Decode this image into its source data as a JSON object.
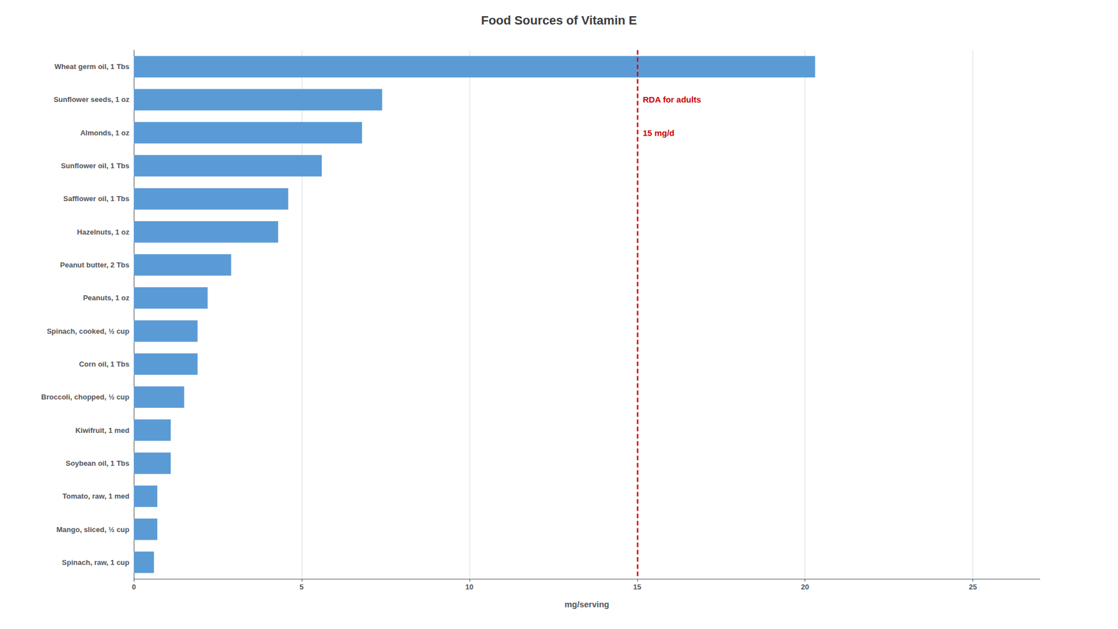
{
  "chart_data": {
    "type": "bar",
    "orientation": "horizontal",
    "title": "Food Sources of Vitamin E",
    "xlabel": "mg/serving",
    "categories": [
      "Wheat germ oil, 1 Tbs",
      "Sunflower seeds, 1 oz",
      "Almonds, 1 oz",
      "Sunflower oil, 1 Tbs",
      "Safflower oil, 1 Tbs",
      "Hazelnuts, 1 oz",
      "Peanut butter, 2 Tbs",
      "Peanuts, 1 oz",
      "Spinach, cooked, ½ cup",
      "Corn oil, 1 Tbs",
      "Broccoli, chopped, ½ cup",
      "Kiwifruit, 1 med",
      "Soybean oil, 1 Tbs",
      "Tomato, raw, 1 med",
      "Mango, sliced, ½ cup",
      "Spinach, raw, 1 cup"
    ],
    "values": [
      20.3,
      7.4,
      6.8,
      5.6,
      4.6,
      4.3,
      2.9,
      2.2,
      1.9,
      1.9,
      1.5,
      1.1,
      1.1,
      0.7,
      0.7,
      0.6
    ],
    "color": "#5b9bd5",
    "xlim": [
      0,
      27
    ],
    "xticks": [
      0,
      5,
      10,
      15,
      20,
      25
    ],
    "grid": true,
    "reference_line": {
      "x": 15,
      "color": "#cc0000",
      "line_style": "dashed",
      "labels": [
        "RDA for adults",
        "15 mg/d"
      ]
    }
  }
}
